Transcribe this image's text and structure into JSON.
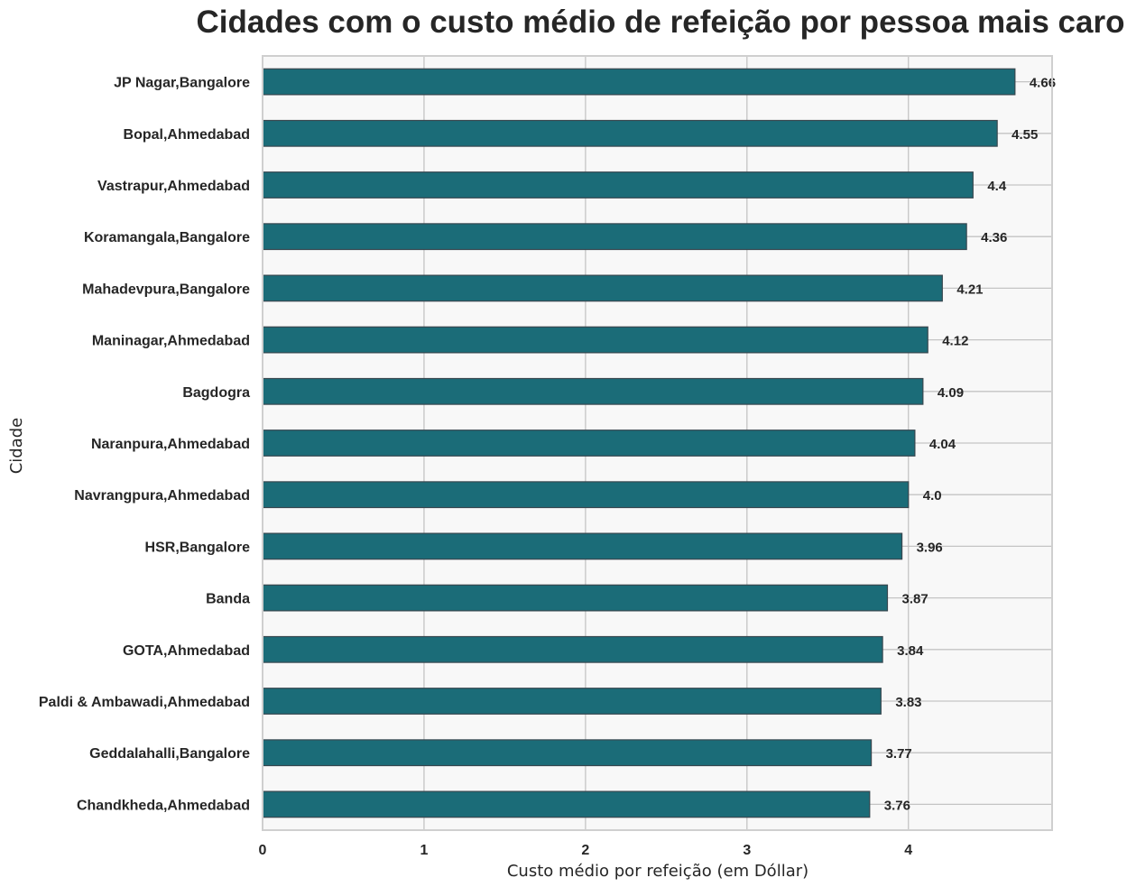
{
  "chart_data": {
    "type": "bar",
    "orientation": "horizontal",
    "title": "Cidades com o custo médio de refeição por pessoa mais caro",
    "xlabel": "Custo médio por refeição (em Dóllar)",
    "ylabel": "Cidade",
    "categories": [
      "JP Nagar,Bangalore",
      "Bopal,Ahmedabad",
      "Vastrapur,Ahmedabad",
      "Koramangala,Bangalore",
      "Mahadevpura,Bangalore",
      "Maninagar,Ahmedabad",
      "Bagdogra",
      "Naranpura,Ahmedabad",
      "Navrangpura,Ahmedabad",
      "HSR,Bangalore",
      "Banda",
      "GOTA,Ahmedabad",
      "Paldi & Ambawadi,Ahmedabad",
      "Geddalahalli,Bangalore",
      "Chandkheda,Ahmedabad"
    ],
    "values": [
      4.66,
      4.55,
      4.4,
      4.36,
      4.21,
      4.12,
      4.09,
      4.04,
      4.0,
      3.96,
      3.87,
      3.84,
      3.83,
      3.77,
      3.76
    ],
    "value_labels": [
      "4.66",
      "4.55",
      "4.4",
      "4.36",
      "4.21",
      "4.12",
      "4.09",
      "4.04",
      "4.0",
      "3.96",
      "3.87",
      "3.84",
      "3.83",
      "3.77",
      "3.76"
    ],
    "xticks": [
      "0",
      "1",
      "2",
      "3",
      "4"
    ],
    "xlim": [
      0,
      4.89
    ],
    "grid": true,
    "legend": "none",
    "colors": {
      "bar": "#1b6c78",
      "bar_edge": "#37474f",
      "plot_bg": "#f8f8f8",
      "grid": "#c4c4c4",
      "frame": "#cfcfcf",
      "text": "#262626"
    }
  }
}
